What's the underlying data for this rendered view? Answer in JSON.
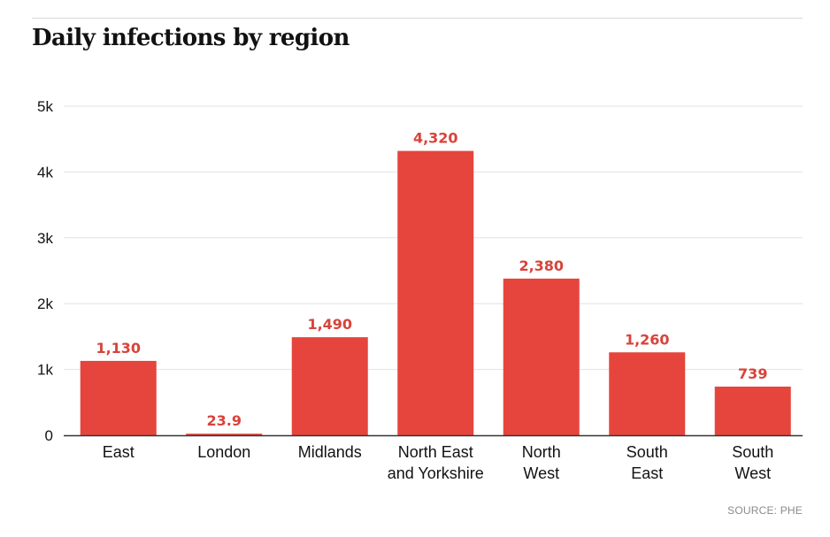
{
  "colors": {
    "bar": "#e5453c",
    "data_label": "#d8433a",
    "grid": "#e3e3e3",
    "axis": "#333333"
  },
  "footer": {
    "source": "SOURCE: PHE"
  },
  "chart_data": {
    "type": "bar",
    "title": "Daily infections by region",
    "xlabel": "",
    "ylabel": "",
    "ylim": [
      0,
      5000
    ],
    "grid": true,
    "yticks": [
      {
        "value": 0,
        "label": "0"
      },
      {
        "value": 1000,
        "label": "1k"
      },
      {
        "value": 2000,
        "label": "2k"
      },
      {
        "value": 3000,
        "label": "3k"
      },
      {
        "value": 4000,
        "label": "4k"
      },
      {
        "value": 5000,
        "label": "5k"
      }
    ],
    "categories": [
      [
        "East"
      ],
      [
        "London"
      ],
      [
        "Midlands"
      ],
      [
        "North East",
        "and Yorkshire"
      ],
      [
        "North",
        "West"
      ],
      [
        "South",
        "East"
      ],
      [
        "South",
        "West"
      ]
    ],
    "values": [
      1130,
      23.9,
      1490,
      4320,
      2380,
      1260,
      739
    ],
    "value_labels": [
      "1,130",
      "23.9",
      "1,490",
      "4,320",
      "2,380",
      "1,260",
      "739"
    ]
  }
}
